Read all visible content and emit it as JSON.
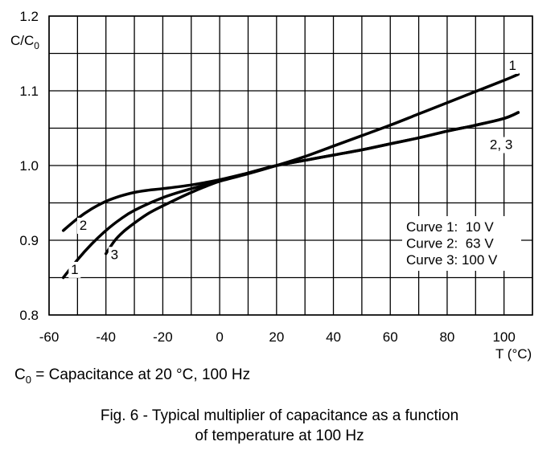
{
  "footnote": {
    "symbol": "C",
    "subscript": "0",
    "text": " = Capacitance at 20 °C, 100 Hz"
  },
  "caption": {
    "line1": "Fig. 6 - Typical multiplier of capacitance as a function",
    "line2": "of temperature at 100 Hz"
  },
  "chart_data": {
    "type": "line",
    "title": "",
    "xlabel": "T (°C)",
    "ylabel": "C/C0",
    "ylabel_main": "C/C",
    "ylabel_sub": "0",
    "xlim": [
      -60,
      110
    ],
    "ylim": [
      0.8,
      1.2
    ],
    "x_ticks": [
      -60,
      -40,
      -20,
      0,
      20,
      40,
      60,
      80,
      100
    ],
    "x_tick_labels": [
      "-60",
      "-40",
      "-20",
      "0",
      "20",
      "40",
      "60",
      "80",
      "100"
    ],
    "y_ticks": [
      0.8,
      0.9,
      1.0,
      1.1,
      1.2
    ],
    "y_tick_labels": [
      "0.8",
      "0.9",
      "1.0",
      "1.1",
      "1.2"
    ],
    "grid": true,
    "grid_x_step": 10,
    "grid_y_step": 0.05,
    "line_color": "#000000",
    "legend": {
      "placement": "lower-right",
      "entries": [
        "Curve 1:  10 V",
        "Curve 2:  63 V",
        "Curve 3: 100 V"
      ]
    },
    "series": [
      {
        "name": "1",
        "x": [
          -55,
          -50,
          -45,
          -40,
          -35,
          -30,
          -20,
          -10,
          0,
          10,
          20,
          30,
          40,
          50,
          60,
          70,
          80,
          90,
          100,
          105
        ],
        "y": [
          0.85,
          0.874,
          0.895,
          0.913,
          0.928,
          0.94,
          0.957,
          0.969,
          0.979,
          0.989,
          1.0,
          1.012,
          1.026,
          1.04,
          1.054,
          1.069,
          1.084,
          1.099,
          1.114,
          1.122
        ]
      },
      {
        "name": "2",
        "x": [
          -55,
          -50,
          -45,
          -40,
          -35,
          -30,
          -25,
          -20,
          -10,
          0,
          10,
          20,
          30,
          40,
          50,
          60,
          70,
          80,
          90,
          100,
          105
        ],
        "y": [
          0.913,
          0.929,
          0.942,
          0.952,
          0.959,
          0.964,
          0.967,
          0.969,
          0.974,
          0.981,
          0.99,
          1.0,
          1.007,
          1.014,
          1.021,
          1.029,
          1.037,
          1.046,
          1.054,
          1.063,
          1.071
        ]
      },
      {
        "name": "3",
        "x": [
          -40,
          -37,
          -34,
          -30,
          -25,
          -20,
          -10,
          0,
          10,
          20,
          30,
          40,
          50,
          60,
          70,
          80,
          90,
          100,
          105
        ],
        "y": [
          0.882,
          0.899,
          0.911,
          0.923,
          0.936,
          0.946,
          0.964,
          0.979,
          0.99,
          1.0,
          1.007,
          1.014,
          1.021,
          1.029,
          1.037,
          1.046,
          1.054,
          1.063,
          1.071
        ]
      }
    ],
    "curve_labels": [
      {
        "text": "1",
        "x": 103,
        "y": 1.128
      },
      {
        "text": "2, 3",
        "x": 99,
        "y": 1.022
      },
      {
        "text": "2",
        "x": -48,
        "y": 0.914
      },
      {
        "text": "3",
        "x": -37,
        "y": 0.875
      },
      {
        "text": "1",
        "x": -51,
        "y": 0.855
      }
    ]
  }
}
